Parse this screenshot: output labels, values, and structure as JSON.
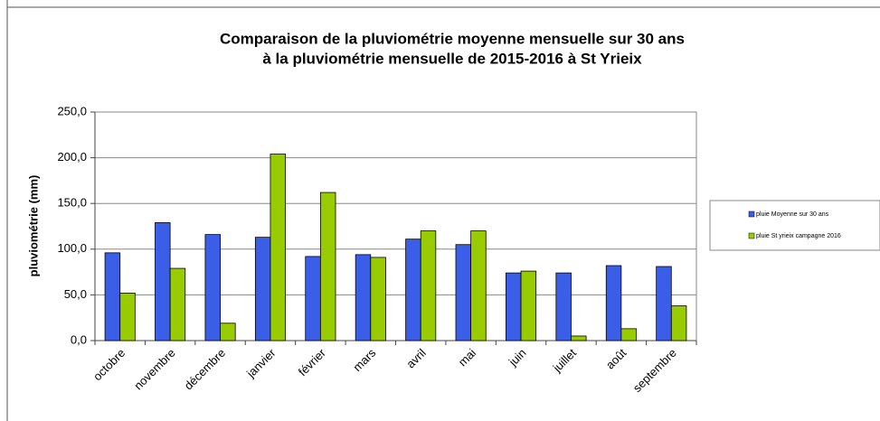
{
  "chart_data": {
    "type": "bar",
    "title": [
      "Comparaison de la pluviométrie moyenne mensuelle sur 30 ans",
      "à la pluviométrie mensuelle de 2015-2016 à St Yrieix"
    ],
    "y_label": "pluviométrie (mm)",
    "categories": [
      "octobre",
      "novembre",
      "décembre",
      "janvier",
      "février",
      "mars",
      "avril",
      "mai",
      "juin",
      "juillet",
      "août",
      "septembre"
    ],
    "series": [
      {
        "name": "pluie Moyenne sur 30 ans",
        "color": "#3b5ee8",
        "values": [
          96,
          129,
          116,
          113,
          92,
          94,
          111,
          105,
          74,
          74,
          82,
          81
        ]
      },
      {
        "name": "pluie St yrieix campagne 2016",
        "color": "#99cc00",
        "values": [
          52,
          79,
          19,
          204,
          162,
          91,
          120,
          120,
          76,
          5,
          13,
          38
        ]
      }
    ],
    "ylim": [
      0,
      250
    ],
    "yticks": [
      {
        "value": 0,
        "label": "0,0"
      },
      {
        "value": 50,
        "label": "50,0"
      },
      {
        "value": 100,
        "label": "100,0"
      },
      {
        "value": 150,
        "label": "150,0"
      },
      {
        "value": 200,
        "label": "200,0"
      },
      {
        "value": 250,
        "label": "250,0"
      }
    ],
    "grid": true,
    "legend": "right"
  }
}
